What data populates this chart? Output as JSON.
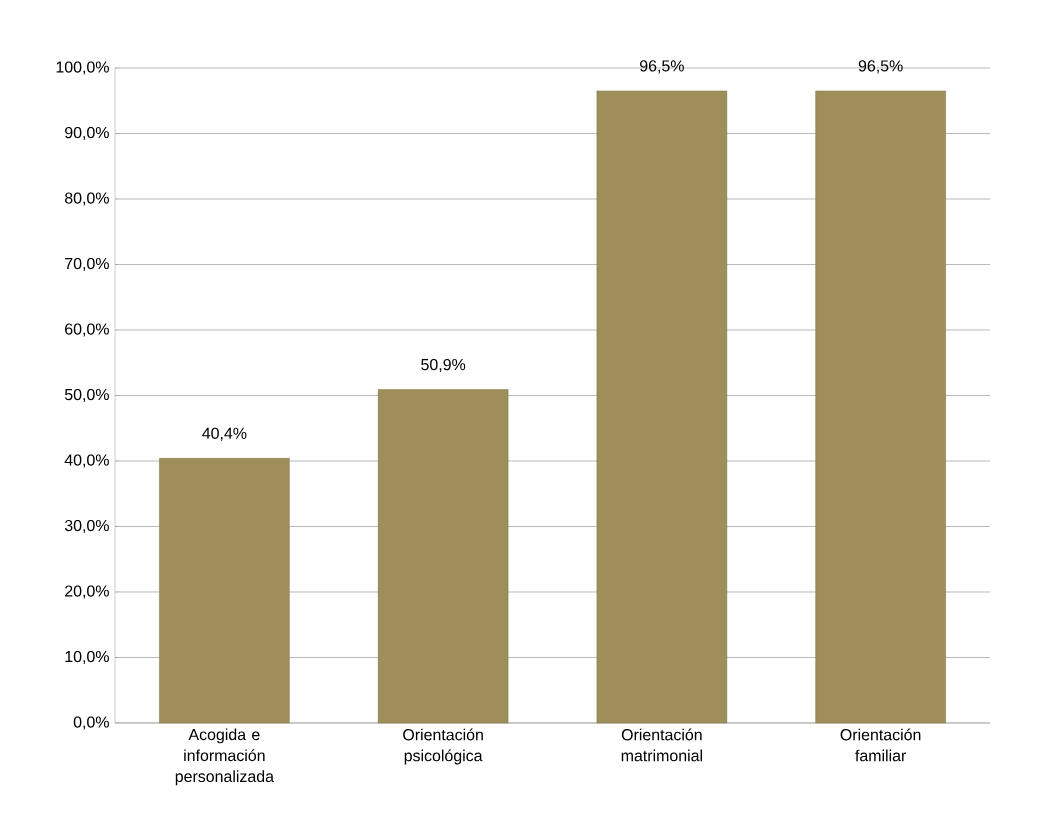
{
  "chart_data": {
    "type": "bar",
    "categories": [
      "Acogida e información personalizada",
      "Orientación psicológica",
      "Orientación matrimonial",
      "Orientación familiar"
    ],
    "values": [
      40.4,
      50.9,
      96.5,
      96.5
    ],
    "value_labels": [
      "40,4%",
      "50,9%",
      "96,5%",
      "96,5%"
    ],
    "color": "#9e8f5a",
    "ylim": [
      0,
      100
    ],
    "yticks": [
      {
        "value": 0,
        "label": "0,0%"
      },
      {
        "value": 10,
        "label": "10,0%"
      },
      {
        "value": 20,
        "label": "20,0%"
      },
      {
        "value": 30,
        "label": "30,0%"
      },
      {
        "value": 40,
        "label": "40,0%"
      },
      {
        "value": 50,
        "label": "50,0%"
      },
      {
        "value": 60,
        "label": "60,0%"
      },
      {
        "value": 70,
        "label": "70,0%"
      },
      {
        "value": 80,
        "label": "80,0%"
      },
      {
        "value": 90,
        "label": "90,0%"
      },
      {
        "value": 100,
        "label": "100,0%"
      }
    ],
    "grid": "y"
  }
}
